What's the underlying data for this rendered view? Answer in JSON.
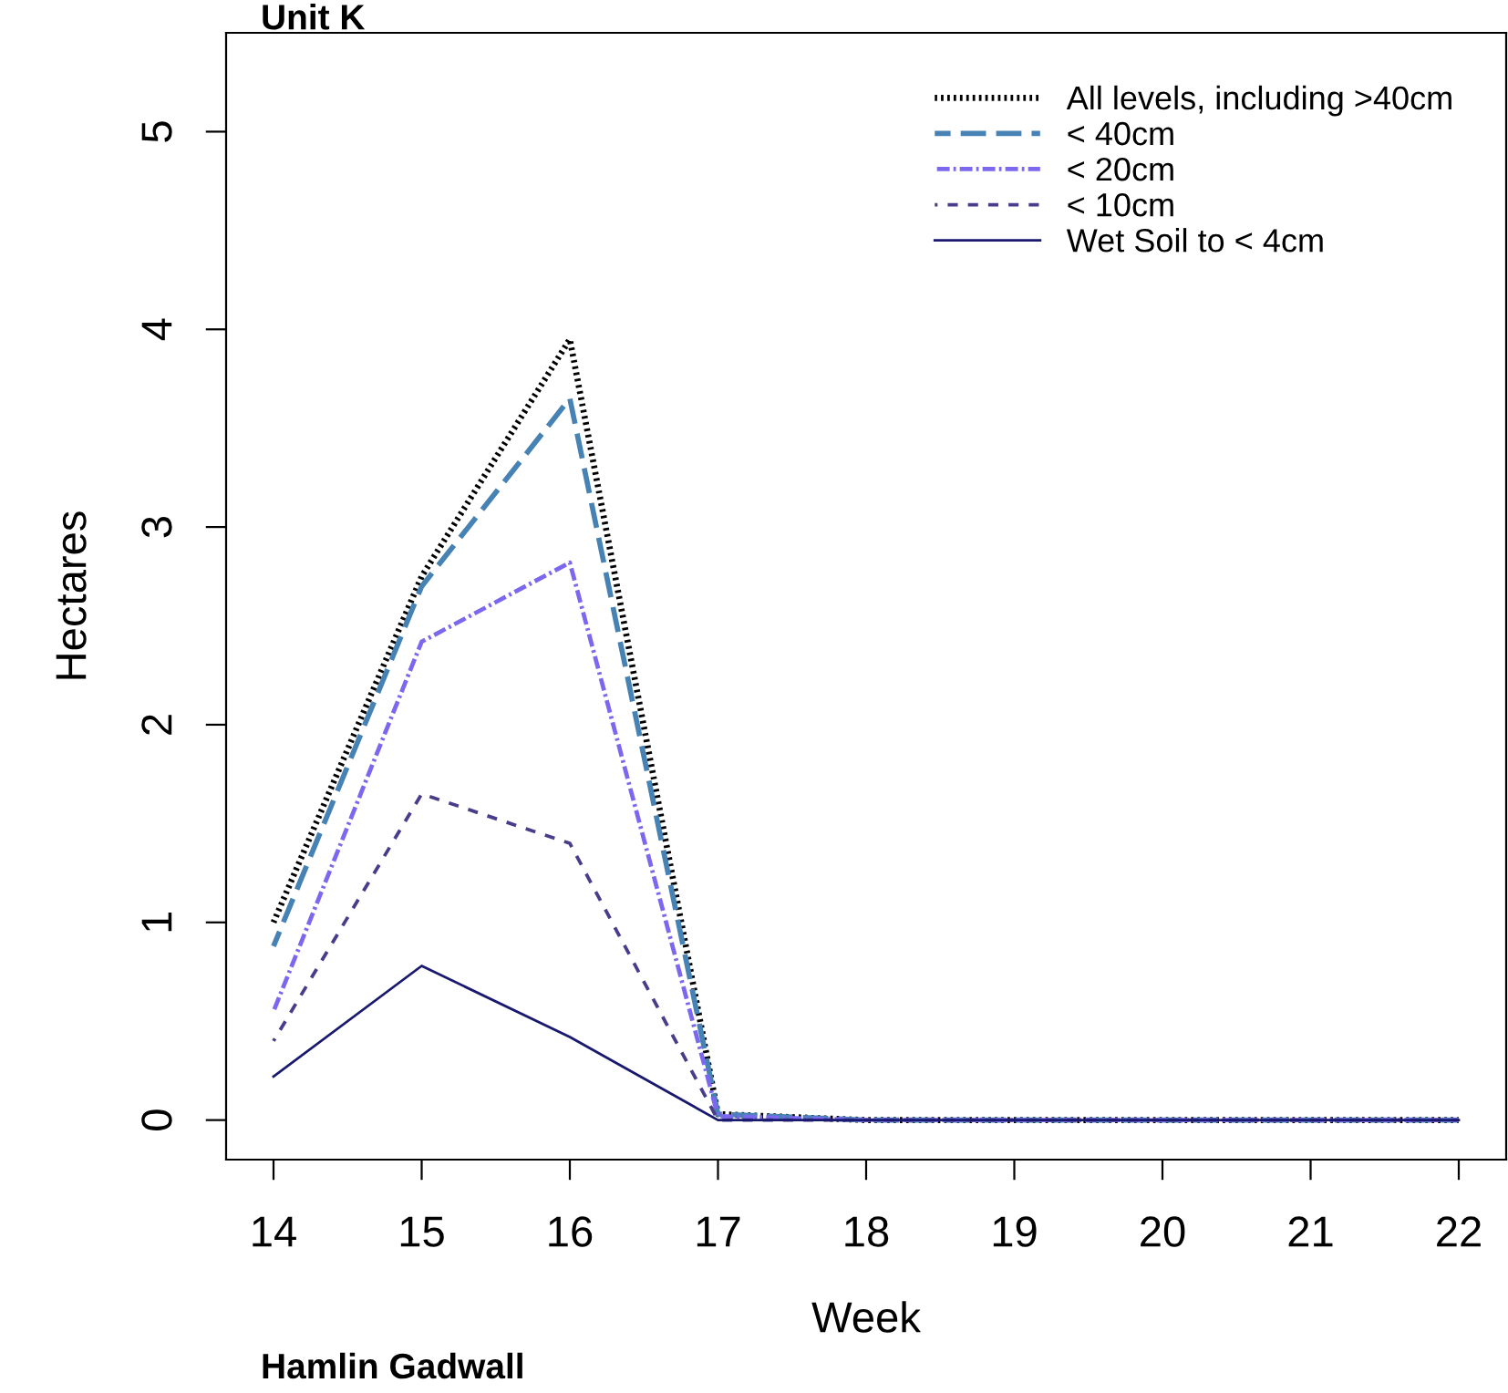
{
  "chart_data": {
    "type": "line",
    "title": "Unit K",
    "xlabel": "Week",
    "ylabel": "Hectares",
    "x": [
      14,
      15,
      16,
      17,
      18,
      19,
      20,
      21,
      22
    ],
    "series": [
      {
        "name": "All levels, including >40cm",
        "color": "#000000",
        "line_style": "dotted",
        "values": [
          1.0,
          2.75,
          3.95,
          0.03,
          0,
          0,
          0,
          0,
          0
        ]
      },
      {
        "name": "< 40cm",
        "color": "#4682b4",
        "line_style": "dashed",
        "values": [
          0.88,
          2.7,
          3.65,
          0.03,
          0,
          0,
          0,
          0,
          0
        ]
      },
      {
        "name": "< 20cm",
        "color": "#7b68ee",
        "line_style": "dashdot",
        "values": [
          0.55,
          2.42,
          2.82,
          0.02,
          0,
          0,
          0,
          0,
          0
        ]
      },
      {
        "name": "< 10cm",
        "color": "#483d8b",
        "line_style": "dashed",
        "values": [
          0.4,
          1.65,
          1.4,
          0,
          0,
          0,
          0,
          0,
          0
        ]
      },
      {
        "name": "Wet Soil to < 4cm",
        "color": "#191970",
        "line_style": "solid",
        "values": [
          0.22,
          0.78,
          0.42,
          0,
          0,
          0,
          0,
          0,
          0
        ]
      }
    ],
    "xlim": [
      13.68,
      22.32
    ],
    "xticks": [
      14,
      15,
      16,
      17,
      18,
      19,
      20,
      21,
      22
    ],
    "ylim": [
      -0.2,
      5.5
    ],
    "yticks": [
      0,
      1,
      2,
      3,
      4,
      5
    ],
    "grid": false,
    "legend": "top right",
    "marker": "none",
    "annotations": [
      "Hamlin Gadwall"
    ]
  }
}
